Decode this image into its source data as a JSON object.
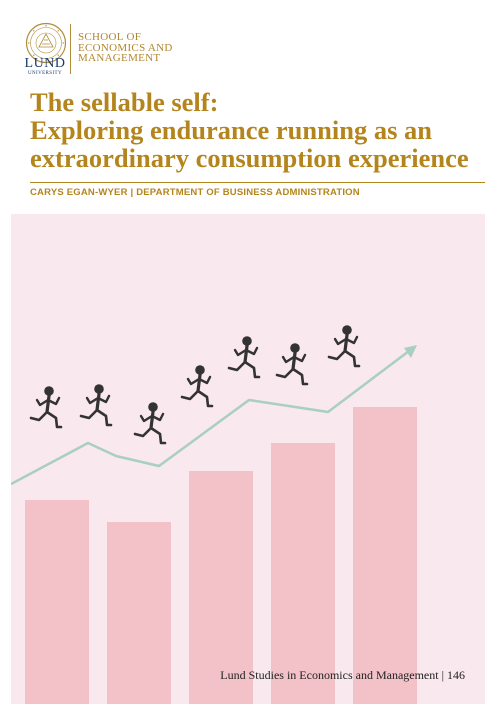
{
  "logo": {
    "university_name": "LUND",
    "university_sub": "UNIVERSITY",
    "icon": "university-seal",
    "school_lines": [
      "SCHOOL OF",
      "ECONOMICS AND",
      "MANAGEMENT"
    ]
  },
  "title_lines": [
    "The sellable self:",
    "Exploring endurance running as an",
    "extraordinary consumption experience"
  ],
  "author": "CARYS EGAN-WYER",
  "byline_separator": "|",
  "department": "DEPARTMENT OF BUSINESS ADMINISTRATION",
  "series": "Lund Studies in Economics and Management | 146",
  "colors": {
    "accent_gold": "#b5851d",
    "logo_blue": "#1b3a6b",
    "art_background": "#f9e8ee",
    "bars": "#f2c2c8",
    "trend_line": "#a8cfc0",
    "runners": "#333333"
  },
  "illustration": {
    "icons": [
      "running-figure",
      "trend-arrow"
    ],
    "runner_count": 7
  }
}
